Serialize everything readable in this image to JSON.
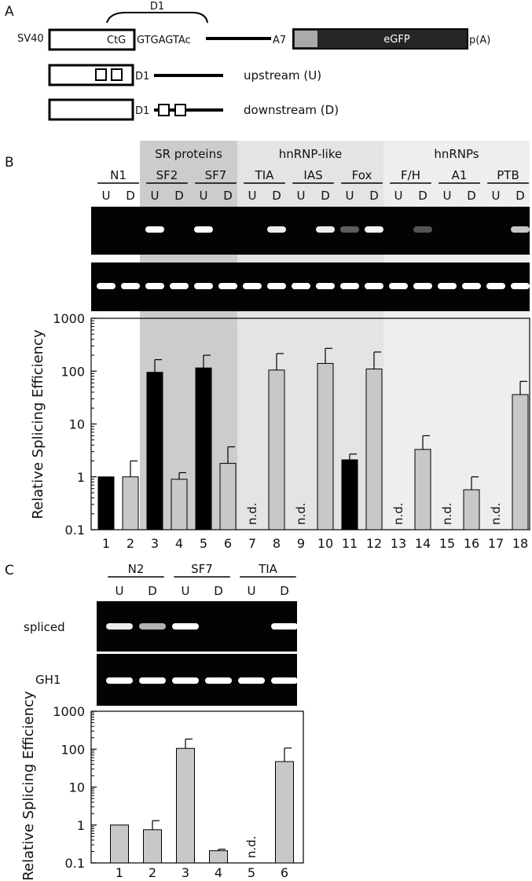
{
  "panel_a": {
    "label": "A",
    "sv40": "SV40",
    "ctg": "CtG",
    "seq": "GTGAGTAc",
    "d1": "D1",
    "a7": "A7",
    "egfp": "eGFP",
    "pa": "p(A)",
    "upstream_label": "upstream (U)",
    "downstream_label": "downstream (D)"
  },
  "panel_b": {
    "label": "B",
    "groups": [
      {
        "name": "SR proteins",
        "shade": "#cccccc"
      },
      {
        "name": "hnRNP-like",
        "shade": "#e4e4e4"
      },
      {
        "name": "hnRNPs",
        "shade": "#eeeeee"
      }
    ],
    "conditions": [
      "N1",
      "SF2",
      "SF7",
      "TIA",
      "IAS",
      "Fox",
      "F/H",
      "A1",
      "PTB"
    ],
    "lane_labels": [
      "U",
      "D",
      "U",
      "D",
      "U",
      "D",
      "U",
      "D",
      "U",
      "D",
      "U",
      "D",
      "U",
      "D",
      "U",
      "D",
      "U",
      "D"
    ],
    "nd_label": "n.d."
  },
  "panel_c": {
    "label": "C",
    "conditions": [
      "N2",
      "SF7",
      "TIA"
    ],
    "lane_labels": [
      "U",
      "D",
      "U",
      "D",
      "U",
      "D"
    ],
    "row_labels": [
      "spliced",
      "GH1"
    ],
    "nd_label": "n.d."
  },
  "chart_data": [
    {
      "type": "bar",
      "panel": "B",
      "scale": "log",
      "ylabel": "Relative Splicing Efficiency",
      "ylim": [
        0.1,
        1000
      ],
      "yticks": [
        "0.1",
        "1",
        "10",
        "100",
        "1000"
      ],
      "categories": [
        "1",
        "2",
        "3",
        "4",
        "5",
        "6",
        "7",
        "8",
        "9",
        "10",
        "11",
        "12",
        "13",
        "14",
        "15",
        "16",
        "17",
        "18"
      ],
      "values": [
        1,
        1,
        95,
        0.9,
        115,
        1.8,
        null,
        105,
        null,
        140,
        2.1,
        110,
        null,
        3.3,
        null,
        0.57,
        null,
        36
      ],
      "errors": [
        0,
        1,
        70,
        0.3,
        85,
        1.9,
        null,
        110,
        null,
        130,
        0.6,
        120,
        null,
        2.7,
        null,
        0.43,
        null,
        28
      ],
      "colors": [
        "#000000",
        "#c8c8c8",
        "#000000",
        "#c8c8c8",
        "#000000",
        "#c8c8c8",
        "#000000",
        "#c8c8c8",
        "#000000",
        "#c8c8c8",
        "#000000",
        "#c8c8c8",
        "#000000",
        "#c8c8c8",
        "#000000",
        "#c8c8c8",
        "#000000",
        "#c8c8c8"
      ],
      "nd_lanes": [
        7,
        9,
        13,
        15,
        17
      ]
    },
    {
      "type": "bar",
      "panel": "C",
      "scale": "log",
      "ylabel": "Relative Splicing Efficiency",
      "ylim": [
        0.1,
        1000
      ],
      "yticks": [
        "0.1",
        "1",
        "10",
        "100",
        "1000"
      ],
      "categories": [
        "1",
        "2",
        "3",
        "4",
        "5",
        "6"
      ],
      "values": [
        1,
        0.75,
        105,
        0.21,
        null,
        47
      ],
      "errors": [
        0,
        0.55,
        80,
        0.02,
        null,
        60
      ],
      "colors": [
        "#c8c8c8",
        "#c8c8c8",
        "#c8c8c8",
        "#c8c8c8",
        "#c8c8c8",
        "#c8c8c8"
      ],
      "nd_lanes": [
        5
      ]
    }
  ],
  "gels": {
    "b_top_bands": [
      0,
      0,
      1,
      0,
      1,
      0,
      0,
      0.9,
      0,
      0.9,
      0.15,
      0.95,
      0,
      0.1,
      0,
      0,
      0,
      0.7
    ],
    "b_bottom_bands": [
      1,
      1,
      1,
      1,
      1,
      1,
      1,
      1,
      1,
      1,
      1,
      1,
      1,
      1,
      1,
      1,
      1,
      1
    ],
    "c_spliced_bands": [
      0.9,
      0.6,
      1,
      0,
      0,
      1
    ],
    "c_gh1_bands": [
      1,
      1,
      1,
      1,
      1,
      1
    ]
  }
}
